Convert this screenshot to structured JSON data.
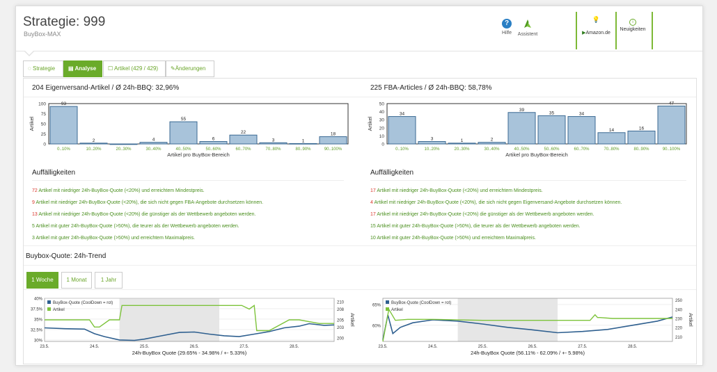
{
  "header": {
    "title": "Strategie: 999",
    "subtitle": "BuyBox-MAX",
    "help_label": "Hilfe",
    "assistant_label": "Assistent",
    "amazon_label": "Amazon.de",
    "news_label": "Neuigkeiten"
  },
  "tabs": [
    {
      "label": "Strategie",
      "icon": "bulb-icon"
    },
    {
      "label": "Analyse",
      "icon": "chart-icon",
      "active": true
    },
    {
      "label": "Artikel (429 / 429)",
      "icon": "box-icon"
    },
    {
      "label": "Änderungen",
      "icon": "edit-icon"
    }
  ],
  "left": {
    "title": "204 Eigenversand-Artikel / Ø 24h-BBQ: 32,96%",
    "findings_title": "Auffälligkeiten",
    "findings": [
      {
        "count": "72",
        "text": " Artikel mit niedriger 24h-BuyBox-Quote (<20%) und erreichtem Mindestpreis.",
        "color": "#d9362b"
      },
      {
        "count": "9",
        "text": " Artikel mit niedriger 24h-BuyBox-Quote (<20%), die sich nicht gegen FBA-Angebote durchsetzen können.",
        "color": "#d9362b"
      },
      {
        "count": "13",
        "text": " Artikel mit niedriger 24h-BuyBox-Quote (<20%) die günstiger als der Wettbewerb angeboten werden.",
        "color": "#d9362b"
      },
      {
        "count": "5",
        "text": " Artikel mit guter 24h-BuyBox-Quote (>50%), die teurer als der Wettbewerb angeboten werden.",
        "color": "#4a8f1e"
      },
      {
        "count": "3",
        "text": " Artikel mit guter 24h-BuyBox-Quote (>50%) und erreichtem Maximalpreis.",
        "color": "#4a8f1e"
      }
    ]
  },
  "right": {
    "title": "225 FBA-Articles / Ø 24h-BBQ: 58,78%",
    "findings_title": "Auffälligkeiten",
    "findings": [
      {
        "count": "17",
        "text": " Artikel mit niedriger 24h-BuyBox-Quote (<20%) und erreichtem Mindestpreis.",
        "color": "#d9362b"
      },
      {
        "count": "4",
        "text": " Artikel mit niedriger 24h-BuyBox-Quote (<20%), die sich nicht gegen Eigenversand-Angebote durchsetzen können.",
        "color": "#d9362b"
      },
      {
        "count": "17",
        "text": " Artikel mit niedriger 24h-BuyBox-Quote (<20%) die günstiger als der Wettbewerb angeboten werden.",
        "color": "#d9362b"
      },
      {
        "count": "15",
        "text": " Artikel mit guter 24h-BuyBox-Quote (>50%), die teurer als der Wettbewerb angeboten werden.",
        "color": "#4a8f1e"
      },
      {
        "count": "10",
        "text": " Artikel mit guter 24h-BuyBox-Quote (>50%) und erreichtem Maximalpreis.",
        "color": "#4a8f1e"
      }
    ]
  },
  "trend": {
    "title": "Buybox-Quote: 24h-Trend",
    "tabs": [
      "1 Woche",
      "1 Monat",
      "1 Jahr"
    ]
  },
  "chart_data": [
    {
      "type": "bar",
      "ylabel": "Artikel",
      "xlabel": "Artikel pro BuyBox-Bereich",
      "categories": [
        "0..10%",
        "10..20%",
        "20..30%",
        "30..40%",
        "40..50%",
        "50..60%",
        "60..70%",
        "70..80%",
        "80..90%",
        "90..100%"
      ],
      "values": [
        93,
        2,
        0,
        4,
        55,
        6,
        22,
        3,
        1,
        18
      ],
      "labels": [
        "93",
        "2",
        "",
        "4",
        "55",
        "6",
        "22",
        "3",
        "1",
        "18"
      ],
      "ylim": [
        0,
        100
      ],
      "yticks": [
        0,
        25,
        50,
        75,
        100
      ]
    },
    {
      "type": "bar",
      "ylabel": "Artikel",
      "xlabel": "Artikel pro BuyBox-Bereich",
      "categories": [
        "0..10%",
        "10..20%",
        "20..30%",
        "30..40%",
        "40..50%",
        "50..60%",
        "60..70%",
        "70..80%",
        "80..90%",
        "90..100%"
      ],
      "values": [
        34,
        3,
        1,
        2,
        39,
        35,
        34,
        14,
        16,
        47
      ],
      "labels": [
        "34",
        "3",
        "1",
        "2",
        "39",
        "35",
        "34",
        "14",
        "16",
        "47"
      ],
      "ylim": [
        0,
        50
      ],
      "yticks": [
        0,
        10,
        20,
        30,
        40,
        50
      ]
    },
    {
      "type": "line",
      "xlabel": "24h-BuyBox Quote (29.65% - 34.98% / +- 5.33%)",
      "y2label": "Artikel",
      "xticks": [
        "23.5.",
        "24.5.",
        "25.5.",
        "26.5.",
        "27.5.",
        "28.5."
      ],
      "yticks": [
        "30%",
        "32.5%",
        "35%",
        "37.5%",
        "40%"
      ],
      "ylim": [
        29.65,
        40
      ],
      "y2ticks": [
        "200",
        "203",
        "205",
        "208",
        "210"
      ],
      "y2lim": [
        199,
        211
      ],
      "series": [
        {
          "name": "BuyBox-Quote (CoolDown = rot)",
          "color": "#2e5f8f",
          "x": [
            0,
            0.4,
            0.8,
            1.0,
            1.2,
            1.5,
            1.8,
            2.0,
            2.3,
            2.7,
            3.0,
            3.3,
            3.6,
            3.9,
            4.2,
            4.5,
            4.8,
            5.1,
            5.3,
            5.6,
            5.8
          ],
          "y": [
            32.9,
            32.7,
            32.6,
            31.5,
            30.8,
            30.0,
            29.9,
            30.2,
            30.9,
            31.8,
            31.9,
            31.4,
            31.0,
            30.8,
            31.4,
            32.0,
            32.9,
            33.3,
            33.9,
            33.5,
            33.6
          ]
        },
        {
          "name": "Artikel",
          "color": "#7dc33b",
          "x": [
            0,
            0.5,
            0.9,
            1.0,
            1.1,
            1.3,
            1.5,
            1.55,
            2.0,
            2.5,
            3.0,
            3.5,
            3.9,
            3.95,
            4.1,
            4.2,
            4.25,
            4.5,
            4.9,
            5.1,
            5.5,
            5.8
          ],
          "y": [
            205,
            205,
            205,
            203,
            203,
            205,
            205,
            209,
            209,
            209,
            209,
            209,
            209,
            209,
            208,
            209,
            202,
            202,
            205,
            205,
            204,
            204
          ]
        }
      ]
    },
    {
      "type": "line",
      "xlabel": "24h-BuyBox Quote (56.11% - 62.09% / +- 5.98%)",
      "y2label": "Artikel",
      "xticks": [
        "23.5.",
        "24.5.",
        "25.5.",
        "26.5.",
        "27.5.",
        "28.5."
      ],
      "yticks": [
        "60%",
        "65%"
      ],
      "ylim": [
        56.11,
        66.5
      ],
      "y2ticks": [
        "210",
        "220",
        "230",
        "240",
        "250"
      ],
      "y2lim": [
        205,
        252
      ],
      "series": [
        {
          "name": "BuyBox-Quote (CoolDown = rot)",
          "color": "#2e5f8f",
          "x": [
            0,
            0.1,
            0.2,
            0.35,
            0.6,
            1.0,
            1.5,
            2.0,
            2.5,
            3.0,
            3.5,
            4.0,
            4.5,
            5.0,
            5.5,
            5.8
          ],
          "y": [
            56.5,
            62.5,
            58.0,
            59.5,
            60.6,
            61.3,
            61.0,
            60.3,
            59.5,
            58.9,
            58.2,
            58.5,
            59.0,
            60.0,
            61.0,
            62.0
          ]
        },
        {
          "name": "Artikel",
          "color": "#7dc33b",
          "x": [
            0,
            0.12,
            0.25,
            0.5,
            1.0,
            2.0,
            3.0,
            4.0,
            4.15,
            4.25,
            4.3,
            4.35,
            4.6,
            5.0,
            5.8
          ],
          "y": [
            205,
            240,
            228,
            229,
            229,
            228,
            228,
            228,
            228,
            234,
            231,
            231,
            230,
            230,
            230
          ]
        }
      ]
    }
  ]
}
